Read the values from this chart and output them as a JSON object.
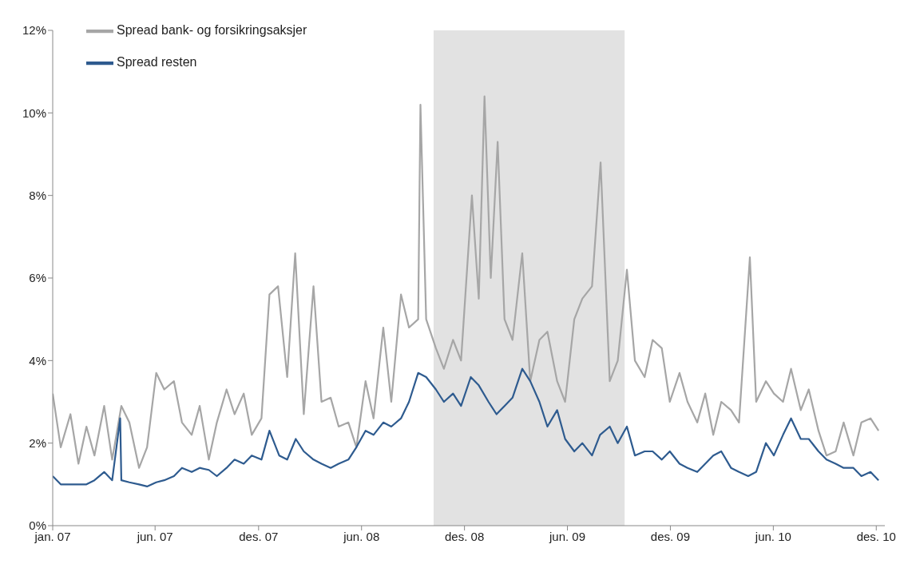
{
  "chart_data": {
    "type": "line",
    "legend": "top left",
    "grid": false,
    "marker": "none",
    "line_style": "solid",
    "xlim": [
      "2007-01-01",
      "2010-12-26"
    ],
    "xticks": [
      {
        "value": "2007-01-01",
        "label": "jan. 07"
      },
      {
        "value": "2007-06-29",
        "label": "jun. 07"
      },
      {
        "value": "2007-12-27",
        "label": "des. 07"
      },
      {
        "value": "2008-06-24",
        "label": "jun. 08"
      },
      {
        "value": "2008-12-21",
        "label": "des. 08"
      },
      {
        "value": "2009-06-19",
        "label": "jun. 09"
      },
      {
        "value": "2009-12-16",
        "label": "des. 09"
      },
      {
        "value": "2010-06-14",
        "label": "jun. 10"
      },
      {
        "value": "2010-12-11",
        "label": "des. 10"
      }
    ],
    "ylim": [
      0,
      12
    ],
    "yticks": [
      {
        "value": 0,
        "label": "0%"
      },
      {
        "value": 2,
        "label": "2%"
      },
      {
        "value": 4,
        "label": "4%"
      },
      {
        "value": 6,
        "label": "6%"
      },
      {
        "value": 8,
        "label": "8%"
      },
      {
        "value": 10,
        "label": "10%"
      },
      {
        "value": 12,
        "label": "12%"
      }
    ],
    "bands": [
      {
        "axis": "x",
        "from": "2008-10-28",
        "to": "2009-09-27",
        "color": "#e2e2e2"
      }
    ],
    "series": [
      {
        "name": "Spread bank- og forsikringsaksjer",
        "color": "#a6a6a6",
        "x": [
          "2007-01-01",
          "2007-01-15",
          "2007-02-01",
          "2007-02-15",
          "2007-03-01",
          "2007-03-15",
          "2007-04-01",
          "2007-04-15",
          "2007-05-01",
          "2007-05-15",
          "2007-06-01",
          "2007-06-15",
          "2007-07-01",
          "2007-07-15",
          "2007-08-01",
          "2007-08-15",
          "2007-09-01",
          "2007-09-15",
          "2007-10-01",
          "2007-10-15",
          "2007-11-01",
          "2007-11-15",
          "2007-12-01",
          "2007-12-15",
          "2008-01-01",
          "2008-01-15",
          "2008-01-30",
          "2008-02-15",
          "2008-02-29",
          "2008-03-15",
          "2008-04-01",
          "2008-04-15",
          "2008-05-01",
          "2008-05-15",
          "2008-06-01",
          "2008-06-15",
          "2008-07-01",
          "2008-07-15",
          "2008-08-01",
          "2008-08-15",
          "2008-09-01",
          "2008-09-15",
          "2008-10-01",
          "2008-10-05",
          "2008-10-15",
          "2008-11-01",
          "2008-11-15",
          "2008-12-01",
          "2008-12-15",
          "2009-01-03",
          "2009-01-15",
          "2009-01-25",
          "2009-02-05",
          "2009-02-17",
          "2009-03-01",
          "2009-03-15",
          "2009-04-01",
          "2009-04-15",
          "2009-05-01",
          "2009-05-15",
          "2009-06-01",
          "2009-06-15",
          "2009-07-01",
          "2009-07-15",
          "2009-08-01",
          "2009-08-16",
          "2009-09-01",
          "2009-09-15",
          "2009-10-01",
          "2009-10-15",
          "2009-11-01",
          "2009-11-15",
          "2009-12-01",
          "2009-12-15",
          "2010-01-01",
          "2010-01-15",
          "2010-02-01",
          "2010-02-15",
          "2010-03-01",
          "2010-03-15",
          "2010-04-01",
          "2010-04-15",
          "2010-05-04",
          "2010-05-15",
          "2010-06-01",
          "2010-06-15",
          "2010-07-01",
          "2010-07-15",
          "2010-08-01",
          "2010-08-15",
          "2010-09-01",
          "2010-09-15",
          "2010-10-01",
          "2010-10-15",
          "2010-11-01",
          "2010-11-15",
          "2010-12-01",
          "2010-12-15"
        ],
        "values": [
          3.2,
          1.9,
          2.7,
          1.5,
          2.4,
          1.7,
          2.9,
          1.6,
          2.9,
          2.5,
          1.4,
          1.9,
          3.7,
          3.3,
          3.5,
          2.5,
          2.2,
          2.9,
          1.6,
          2.5,
          3.3,
          2.7,
          3.2,
          2.2,
          2.6,
          5.6,
          5.8,
          3.6,
          6.6,
          2.7,
          5.8,
          3.0,
          3.1,
          2.4,
          2.5,
          1.9,
          3.5,
          2.6,
          4.8,
          3.0,
          5.6,
          4.8,
          5.0,
          10.2,
          5.0,
          4.3,
          3.8,
          4.5,
          4.0,
          8.0,
          5.5,
          10.4,
          6.0,
          9.3,
          5.0,
          4.5,
          6.6,
          3.5,
          4.5,
          4.7,
          3.5,
          3.0,
          5.0,
          5.5,
          5.8,
          8.8,
          3.5,
          4.0,
          6.2,
          4.0,
          3.6,
          4.5,
          4.3,
          3.0,
          3.7,
          3.0,
          2.5,
          3.2,
          2.2,
          3.0,
          2.8,
          2.5,
          6.5,
          3.0,
          3.5,
          3.2,
          3.0,
          3.8,
          2.8,
          3.3,
          2.3,
          1.7,
          1.8,
          2.5,
          1.7,
          2.5,
          2.6,
          2.3
        ]
      },
      {
        "name": "Spread resten",
        "color": "#2e5b8f",
        "x": [
          "2007-01-01",
          "2007-01-15",
          "2007-02-01",
          "2007-02-15",
          "2007-03-01",
          "2007-03-15",
          "2007-04-01",
          "2007-04-15",
          "2007-04-29",
          "2007-05-01",
          "2007-05-15",
          "2007-06-01",
          "2007-06-15",
          "2007-07-01",
          "2007-07-15",
          "2007-08-01",
          "2007-08-15",
          "2007-09-01",
          "2007-09-15",
          "2007-10-01",
          "2007-10-15",
          "2007-11-01",
          "2007-11-15",
          "2007-12-01",
          "2007-12-15",
          "2008-01-01",
          "2008-01-15",
          "2008-02-01",
          "2008-02-15",
          "2008-03-01",
          "2008-03-15",
          "2008-04-01",
          "2008-04-15",
          "2008-05-01",
          "2008-05-15",
          "2008-06-01",
          "2008-06-15",
          "2008-07-01",
          "2008-07-15",
          "2008-08-01",
          "2008-08-15",
          "2008-09-01",
          "2008-09-15",
          "2008-10-01",
          "2008-10-15",
          "2008-11-01",
          "2008-11-15",
          "2008-12-01",
          "2008-12-15",
          "2009-01-01",
          "2009-01-15",
          "2009-02-01",
          "2009-02-15",
          "2009-03-01",
          "2009-03-15",
          "2009-04-01",
          "2009-04-15",
          "2009-05-01",
          "2009-05-15",
          "2009-06-01",
          "2009-06-15",
          "2009-07-01",
          "2009-07-15",
          "2009-08-01",
          "2009-08-15",
          "2009-09-01",
          "2009-09-15",
          "2009-10-01",
          "2009-10-15",
          "2009-11-01",
          "2009-11-15",
          "2009-12-01",
          "2009-12-15",
          "2010-01-01",
          "2010-01-15",
          "2010-02-01",
          "2010-02-15",
          "2010-03-01",
          "2010-03-15",
          "2010-04-01",
          "2010-04-15",
          "2010-05-01",
          "2010-05-15",
          "2010-06-01",
          "2010-06-15",
          "2010-07-01",
          "2010-07-15",
          "2010-08-01",
          "2010-08-15",
          "2010-09-01",
          "2010-09-15",
          "2010-10-01",
          "2010-10-15",
          "2010-11-01",
          "2010-11-15",
          "2010-12-01",
          "2010-12-15"
        ],
        "values": [
          1.2,
          1.0,
          1.0,
          1.0,
          1.0,
          1.1,
          1.3,
          1.1,
          2.6,
          1.1,
          1.05,
          1.0,
          0.95,
          1.05,
          1.1,
          1.2,
          1.4,
          1.3,
          1.4,
          1.35,
          1.2,
          1.4,
          1.6,
          1.5,
          1.7,
          1.6,
          2.3,
          1.7,
          1.6,
          2.1,
          1.8,
          1.6,
          1.5,
          1.4,
          1.5,
          1.6,
          1.9,
          2.3,
          2.2,
          2.5,
          2.4,
          2.6,
          3.0,
          3.7,
          3.6,
          3.3,
          3.0,
          3.2,
          2.9,
          3.6,
          3.4,
          3.0,
          2.7,
          2.9,
          3.1,
          3.8,
          3.5,
          3.0,
          2.4,
          2.8,
          2.1,
          1.8,
          2.0,
          1.7,
          2.2,
          2.4,
          2.0,
          2.4,
          1.7,
          1.8,
          1.8,
          1.6,
          1.8,
          1.5,
          1.4,
          1.3,
          1.5,
          1.7,
          1.8,
          1.4,
          1.3,
          1.2,
          1.3,
          2.0,
          1.7,
          2.2,
          2.6,
          2.1,
          2.1,
          1.8,
          1.6,
          1.5,
          1.4,
          1.4,
          1.2,
          1.3,
          1.1
        ]
      }
    ]
  }
}
